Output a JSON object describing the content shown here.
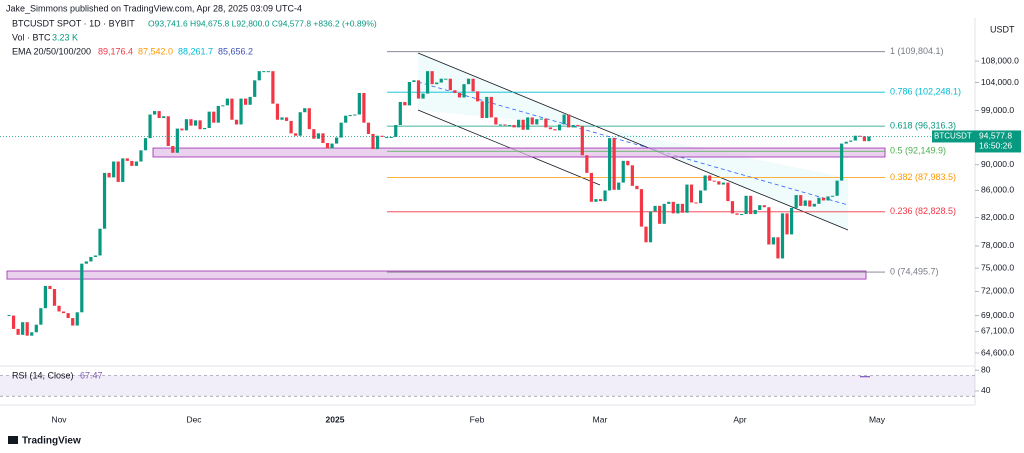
{
  "header": {
    "publisher": "Jake_Simmons published on TradingView.com, Apr 28, 2025 03:09 UTC-4",
    "symbol": "BTCUSDT SPOT · 1D · BYBIT",
    "quote": "O93,741.6 H94,675.8 L92,800.0 C94,577.8 +836.2 (+0.89%)",
    "vol_label": "Vol · BTC",
    "vol_value": "3.23 K",
    "ema_label": "EMA 20/50/100/200",
    "ema_values": [
      {
        "text": "89,176.4",
        "color": "#f23645"
      },
      {
        "text": "87,542.0",
        "color": "#ff9800"
      },
      {
        "text": "88,261.7",
        "color": "#00bcd4"
      },
      {
        "text": "85,656.2",
        "color": "#3f51b5"
      }
    ]
  },
  "chart_data": {
    "type": "candlestick",
    "currency": "USDT",
    "ticker": "BTCUSDT",
    "close_label": "94,577.8",
    "countdown": "16:50:26",
    "up_color": "#089981",
    "down_color": "#f23645",
    "log_scale": true,
    "ylim": [
      63250,
      116100
    ],
    "yticks": [
      {
        "value": 108000,
        "label": "108,000.0"
      },
      {
        "value": 104000,
        "label": "104,000.0"
      },
      {
        "value": 99000,
        "label": "99,000.0"
      },
      {
        "value": 90000,
        "label": "90,000.0"
      },
      {
        "value": 86000,
        "label": "86,000.0"
      },
      {
        "value": 82000,
        "label": "82,000.0"
      },
      {
        "value": 78000,
        "label": "78,000.0"
      },
      {
        "value": 75000,
        "label": "75,000.0"
      },
      {
        "value": 72000,
        "label": "72,000.0"
      },
      {
        "value": 69000,
        "label": "69,000.0"
      },
      {
        "value": 67100,
        "label": "67,100.0"
      },
      {
        "value": 64600,
        "label": "64,600.0"
      }
    ],
    "xtick_labels": [
      "Nov",
      "Dec",
      "2025",
      "Feb",
      "Mar",
      "Apr",
      "May"
    ],
    "close": [
      69000,
      67400,
      66700,
      68200,
      66600,
      67000,
      67900,
      69900,
      72700,
      72300,
      70200,
      69500,
      69300,
      68700,
      67800,
      69400,
      75600,
      75900,
      76500,
      76700,
      80400,
      88700,
      88000,
      90500,
      87300,
      91000,
      90600,
      89800,
      90500,
      92300,
      94300,
      98300,
      98900,
      97700,
      98000,
      93000,
      91900,
      95900,
      95600,
      97500,
      96400,
      97300,
      95800,
      96000,
      98800,
      96900,
      99800,
      99900,
      101100,
      97400,
      96600,
      101100,
      100000,
      101400,
      104400,
      106100,
      106100,
      106100,
      100200,
      97400,
      97800,
      97200,
      95100,
      94700,
      98700,
      99400,
      95800,
      94200,
      95100,
      93500,
      92600,
      93400,
      94400,
      96900,
      98100,
      98200,
      98300,
      102100,
      96900,
      95000,
      92500,
      94700,
      94500,
      94500,
      94500,
      96500,
      100500,
      99900,
      104100,
      104400,
      101100,
      102000,
      106100,
      103700,
      104000,
      104700,
      104700,
      102600,
      102100,
      101300,
      103700,
      104700,
      102400,
      100600,
      97700,
      101400,
      97800,
      96600,
      96600,
      96500,
      96500,
      96100,
      97400,
      95700,
      97800,
      96600,
      97500,
      97600,
      96100,
      95800,
      95600,
      96600,
      98300,
      96100,
      96500,
      96300,
      91500,
      88700,
      84300,
      84700,
      84400,
      86000,
      94300,
      86100,
      87200,
      90600,
      89900,
      86700,
      86200,
      80700,
      78500,
      82900,
      83700,
      81100,
      84000,
      84300,
      82600,
      84000,
      82700,
      86900,
      84200,
      84100,
      86000,
      88300,
      87500,
      87400,
      86900,
      87200,
      84400,
      82600,
      82400,
      82500,
      85200,
      82500,
      83100,
      83800,
      83500,
      78200,
      79200,
      76300,
      82600,
      79600,
      83400,
      85300,
      83700,
      84500,
      83600,
      84000,
      84900,
      84500,
      85100,
      85200,
      87500,
      93400,
      93700,
      93900,
      94700,
      94600,
      93800,
      94577.8
    ],
    "fib": [
      {
        "price": 109804.1,
        "label": "1 (109,804.1)",
        "color": "#787b86"
      },
      {
        "price": 102248.1,
        "label": "0.786 (102,248.1)",
        "color": "#00bcd4"
      },
      {
        "price": 96316.3,
        "label": "0.618 (96,316.3)",
        "color": "#089981"
      },
      {
        "price": 92149.9,
        "label": "0.5 (92,149.9)",
        "color": "#4caf50"
      },
      {
        "price": 87983.5,
        "label": "0.382 (87,983.5)",
        "color": "#ff9800"
      },
      {
        "price": 82828.5,
        "label": "0.236 (82,828.5)",
        "color": "#f23645"
      },
      {
        "price": 74495.7,
        "label": "0 (74,495.7)",
        "color": "#787b86"
      }
    ],
    "zones": [
      {
        "top": 92670,
        "bottom": 91220
      },
      {
        "top": 74630,
        "bottom": 73580
      }
    ],
    "rsi": {
      "label": "RSI (14, Close)",
      "value": 67.47,
      "ylim": [
        15,
        88
      ],
      "yticks": [
        80,
        40
      ],
      "band": [
        30,
        70
      ]
    }
  },
  "footer": {
    "brand": "TradingView"
  }
}
